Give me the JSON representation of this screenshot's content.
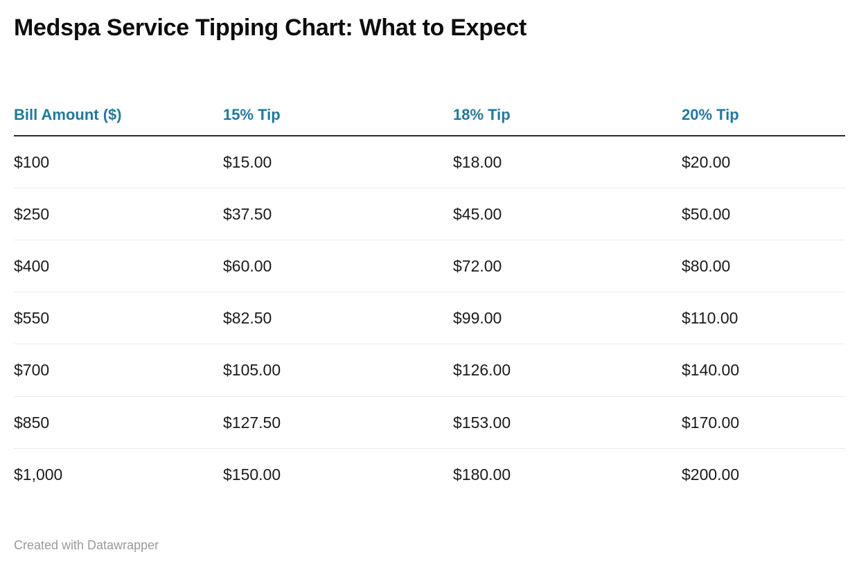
{
  "title": "Medspa Service Tipping Chart: What to Expect",
  "footer": {
    "credit": "Created with Datawrapper"
  },
  "colors": {
    "background": "#ffffff",
    "title_text": "#0d0d0d",
    "header_text": "#20799c",
    "body_text": "#1a1a1a",
    "header_rule": "#2b2b2b",
    "row_divider": "#ebebeb",
    "footer_text": "#9a9a9a"
  },
  "table": {
    "columns": [
      "Bill Amount ($)",
      "15% Tip",
      "18% Tip",
      "20% Tip"
    ],
    "rows": [
      [
        "$100",
        "$15.00",
        "$18.00",
        "$20.00"
      ],
      [
        "$250",
        "$37.50",
        "$45.00",
        "$50.00"
      ],
      [
        "$400",
        "$60.00",
        "$72.00",
        "$80.00"
      ],
      [
        "$550",
        "$82.50",
        "$99.00",
        "$110.00"
      ],
      [
        "$700",
        "$105.00",
        "$126.00",
        "$140.00"
      ],
      [
        "$850",
        "$127.50",
        "$153.00",
        "$170.00"
      ],
      [
        "$1,000",
        "$150.00",
        "$180.00",
        "$200.00"
      ]
    ]
  },
  "chart_data": {
    "type": "table",
    "title": "Medspa Service Tipping Chart: What to Expect",
    "columns": [
      "Bill Amount ($)",
      "15% Tip",
      "18% Tip",
      "20% Tip"
    ],
    "bill_amounts": [
      100,
      250,
      400,
      550,
      700,
      850,
      1000
    ],
    "series": [
      {
        "name": "15% Tip",
        "values": [
          15.0,
          37.5,
          60.0,
          82.5,
          105.0,
          127.5,
          150.0
        ]
      },
      {
        "name": "18% Tip",
        "values": [
          18.0,
          45.0,
          72.0,
          99.0,
          126.0,
          153.0,
          180.0
        ]
      },
      {
        "name": "20% Tip",
        "values": [
          20.0,
          50.0,
          80.0,
          110.0,
          140.0,
          170.0,
          200.0
        ]
      }
    ],
    "credit": "Created with Datawrapper"
  }
}
